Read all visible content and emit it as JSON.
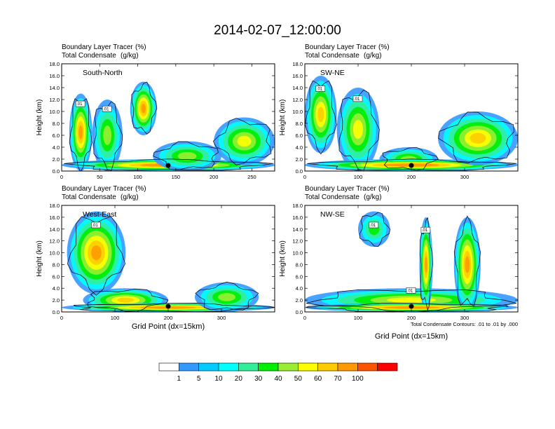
{
  "figure_title": "2014-02-07_12:00:00",
  "chart_data": [
    {
      "type": "heatmap",
      "panel_label": "South-North",
      "field_1": "Boundary Layer Tracer",
      "field_1_units": "(%)",
      "field_2": "Total Condensate",
      "field_2_units": "(g/kg)",
      "ylabel": "Height (km)",
      "xlabel": "",
      "ylim": [
        0,
        18
      ],
      "xlim": [
        0,
        280
      ],
      "x_ticks": [
        "0",
        "50",
        "100",
        "150",
        "200",
        "250"
      ],
      "y_ticks": [
        "0.0",
        "2.0",
        "4.0",
        "6.0",
        "8.0",
        "10.0",
        "12.0",
        "14.0",
        "16.0",
        "18.0"
      ],
      "contour_labels": [
        ".01",
        ".01"
      ],
      "marker_x": 140,
      "tracer_blobs": [
        {
          "x": [
            10,
            40
          ],
          "z": [
            0,
            13
          ],
          "peak": 70
        },
        {
          "x": [
            40,
            80
          ],
          "z": [
            0,
            12
          ],
          "peak": 40
        },
        {
          "x": [
            90,
            125
          ],
          "z": [
            6,
            15
          ],
          "peak": 80
        },
        {
          "x": [
            0,
            280
          ],
          "z": [
            0,
            2
          ],
          "peak": 90
        },
        {
          "x": [
            120,
            210
          ],
          "z": [
            0,
            5
          ],
          "peak": 40
        },
        {
          "x": [
            200,
            280
          ],
          "z": [
            1,
            9
          ],
          "peak": 50
        }
      ]
    },
    {
      "type": "heatmap",
      "panel_label": "SW-NE",
      "field_1": "Boundary Layer Tracer",
      "field_1_units": "(%)",
      "field_2": "Total Condensate",
      "field_2_units": "(g/kg)",
      "ylabel": "Height (km)",
      "xlabel": "",
      "ylim": [
        0,
        18
      ],
      "xlim": [
        0,
        400
      ],
      "x_ticks": [
        "0",
        "100",
        "200",
        "300"
      ],
      "y_ticks": [
        "0.0",
        "2.0",
        "4.0",
        "6.0",
        "8.0",
        "10.0",
        "12.0",
        "14.0",
        "16.0",
        "18.0"
      ],
      "contour_labels": [
        ".01",
        ".01"
      ],
      "marker_x": 200,
      "tracer_blobs": [
        {
          "x": [
            0,
            60
          ],
          "z": [
            3,
            16
          ],
          "peak": 60
        },
        {
          "x": [
            60,
            140
          ],
          "z": [
            0,
            14
          ],
          "peak": 50
        },
        {
          "x": [
            140,
            250
          ],
          "z": [
            0,
            4
          ],
          "peak": 40
        },
        {
          "x": [
            0,
            400
          ],
          "z": [
            0,
            2
          ],
          "peak": 90
        },
        {
          "x": [
            250,
            400
          ],
          "z": [
            1,
            10
          ],
          "peak": 60
        }
      ]
    },
    {
      "type": "heatmap",
      "panel_label": "West-East",
      "field_1": "Boundary Layer Tracer",
      "field_1_units": "(%)",
      "field_2": "Total Condensate",
      "field_2_units": "(g/kg)",
      "ylabel": "Height (km)",
      "xlabel": "Grid Point (dx=15km)",
      "ylim": [
        0,
        18
      ],
      "xlim": [
        0,
        400
      ],
      "x_ticks": [
        "0",
        "100",
        "200",
        "300"
      ],
      "y_ticks": [
        "0.0",
        "2.0",
        "4.0",
        "6.0",
        "8.0",
        "10.0",
        "12.0",
        "14.0",
        "16.0",
        "18.0"
      ],
      "contour_labels": [
        ".01"
      ],
      "marker_x": 200,
      "tracer_blobs": [
        {
          "x": [
            10,
            120
          ],
          "z": [
            3,
            17
          ],
          "peak": 70
        },
        {
          "x": [
            40,
            200
          ],
          "z": [
            0,
            4
          ],
          "peak": 60
        },
        {
          "x": [
            0,
            400
          ],
          "z": [
            0,
            1.5
          ],
          "peak": 90
        },
        {
          "x": [
            250,
            370
          ],
          "z": [
            0,
            5
          ],
          "peak": 40
        }
      ]
    },
    {
      "type": "heatmap",
      "panel_label": "NW-SE",
      "field_1": "Boundary Layer Tracer",
      "field_1_units": "(%)",
      "field_2": "Total Condensate",
      "field_2_units": "(g/kg)",
      "ylabel": "Height (km)",
      "xlabel": "Grid Point (dx=15km)",
      "ylim": [
        0,
        18
      ],
      "xlim": [
        0,
        400
      ],
      "x_ticks": [
        "0",
        "100",
        "200",
        "300"
      ],
      "y_ticks": [
        "0.0",
        "2.0",
        "4.0",
        "6.0",
        "8.0",
        "10.0",
        "12.0",
        "14.0",
        "16.0",
        "18.0"
      ],
      "contour_labels": [
        ".01",
        ".01",
        ".01"
      ],
      "marker_x": 200,
      "contour_note": "Total Condensate Contours: .01 to .01 by .000",
      "tracer_blobs": [
        {
          "x": [
            0,
            400
          ],
          "z": [
            0,
            4
          ],
          "peak": 50
        },
        {
          "x": [
            100,
            160
          ],
          "z": [
            11,
            17
          ],
          "peak": 30
        },
        {
          "x": [
            215,
            240
          ],
          "z": [
            0,
            16
          ],
          "peak": 70
        },
        {
          "x": [
            280,
            330
          ],
          "z": [
            0,
            16
          ],
          "peak": 80
        },
        {
          "x": [
            0,
            400
          ],
          "z": [
            0,
            1.5
          ],
          "peak": 90
        }
      ]
    }
  ],
  "colorbar": {
    "labels": [
      "1",
      "5",
      "10",
      "20",
      "30",
      "40",
      "50",
      "60",
      "70",
      "100"
    ],
    "colors": [
      "#ffffff",
      "#3399ff",
      "#00ccff",
      "#00ffff",
      "#33ee99",
      "#00ee00",
      "#99ee33",
      "#ffff00",
      "#ffcc00",
      "#ff9900",
      "#ff5500",
      "#ff0000"
    ]
  }
}
